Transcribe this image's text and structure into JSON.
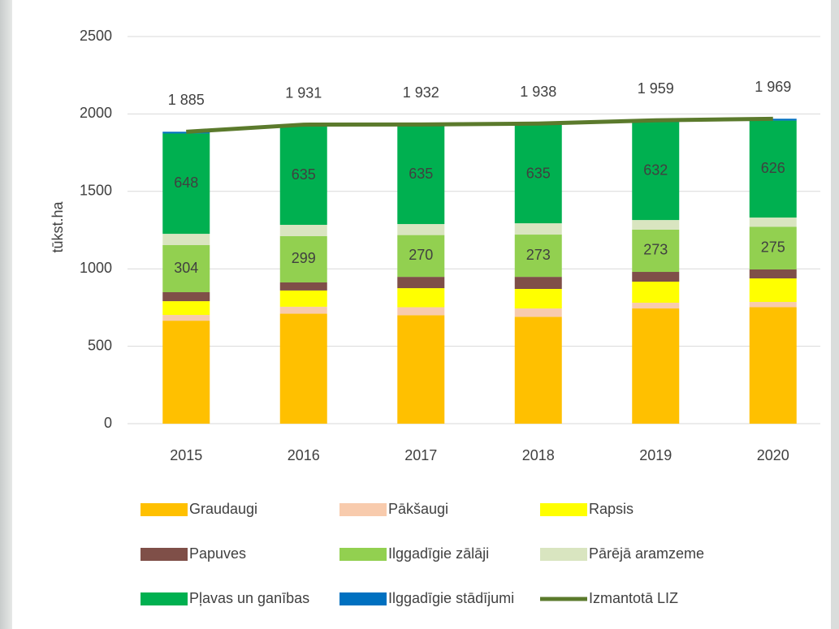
{
  "chart_data": {
    "type": "stacked-bar-line",
    "y_label": "tūkst.ha",
    "categories": [
      "2015",
      "2016",
      "2017",
      "2018",
      "2019",
      "2020"
    ],
    "ylim": [
      0,
      2500
    ],
    "yticks": [
      0,
      500,
      1000,
      1500,
      2000,
      2500
    ],
    "grid": true,
    "series": [
      {
        "name": "Graudaugi",
        "color": "#ffc000",
        "values": [
          665,
          710,
          700,
          690,
          744,
          752
        ]
      },
      {
        "name": "Pākšaugi",
        "color": "#f8cbad",
        "values": [
          37,
          45,
          52,
          54,
          37,
          34
        ]
      },
      {
        "name": "Rapsis",
        "color": "#ffff00",
        "values": [
          89,
          105,
          123,
          126,
          136,
          152
        ]
      },
      {
        "name": "Papuves",
        "color": "#7f4f48",
        "values": [
          58,
          52,
          73,
          78,
          63,
          58
        ]
      },
      {
        "name": "Ilggadīgie zālāji",
        "color": "#92d050",
        "values": [
          304,
          299,
          270,
          273,
          273,
          275
        ],
        "show_labels": true
      },
      {
        "name": "Pārējā aramzeme",
        "color": "#d9e5c0",
        "values": [
          73,
          73,
          71,
          73,
          62,
          60
        ]
      },
      {
        "name": "Pļavas un ganības",
        "color": "#00b050",
        "values": [
          648,
          635,
          635,
          635,
          632,
          626
        ],
        "show_labels": true
      },
      {
        "name": "Ilggadīgie stādījumi",
        "color": "#0070c0",
        "values": [
          11,
          12,
          8,
          9,
          12,
          12
        ]
      },
      {
        "name": "Izmantotā LIZ",
        "color": "#5b7a2c",
        "kind": "line",
        "values": [
          1885,
          1931,
          1932,
          1938,
          1959,
          1969
        ],
        "value_labels": [
          "1 885",
          "1 931",
          "1 932",
          "1 938",
          "1 959",
          "1 969"
        ]
      }
    ]
  }
}
